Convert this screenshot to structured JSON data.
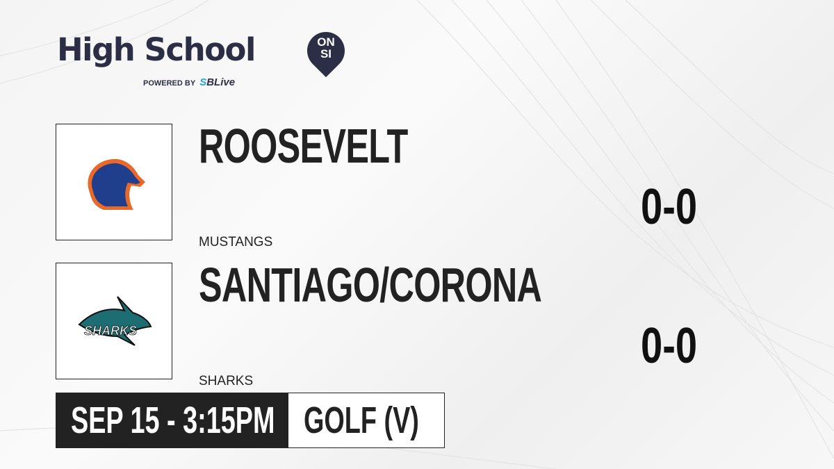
{
  "brand": {
    "title": "High School",
    "badge_top": "ON",
    "badge_bottom": "SI",
    "powered_by": "POWERED BY",
    "partner_prefix": "S",
    "partner": "SBLive",
    "accent": "#2b2e45",
    "partner_color": "#1aa6e8"
  },
  "teams": [
    {
      "name": "ROOSEVELT",
      "mascot": "MUSTANGS",
      "score": "0-0",
      "logo_icon": "mustang-logo"
    },
    {
      "name": "SANTIAGO/CORONA",
      "mascot": "SHARKS",
      "score": "0-0",
      "logo_icon": "shark-logo"
    }
  ],
  "game": {
    "datetime": "SEP 15 - 3:15PM",
    "sport": "GOLF (V)"
  }
}
